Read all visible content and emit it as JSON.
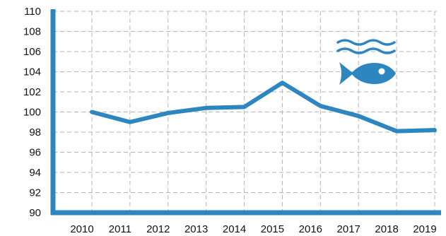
{
  "chart_data": {
    "type": "line",
    "categories": [
      "2010",
      "2011",
      "2012",
      "2013",
      "2014",
      "2015",
      "2016",
      "2017",
      "2018",
      "2019"
    ],
    "series": [
      {
        "values": [
          100.0,
          99.0,
          99.9,
          100.4,
          100.5,
          102.9,
          100.6,
          99.6,
          98.1,
          98.2
        ]
      }
    ],
    "y_ticks": [
      90,
      92,
      94,
      96,
      98,
      100,
      102,
      104,
      106,
      108,
      110
    ],
    "ylim": [
      90,
      110
    ],
    "grid": true,
    "line_color": "#2E86C1",
    "axis_color": "#2E86C1",
    "icon": "fish-with-waves-icon"
  }
}
